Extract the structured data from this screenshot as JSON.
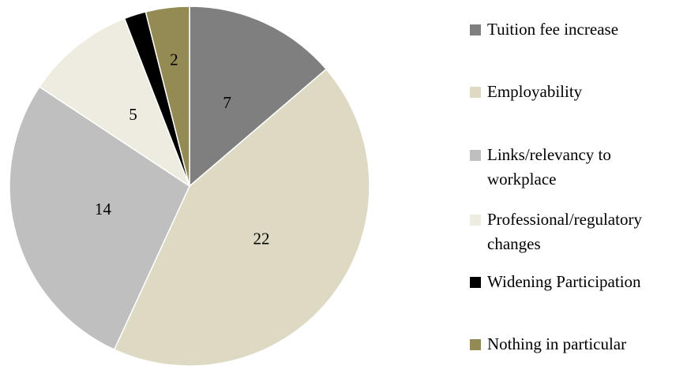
{
  "chart_data": {
    "type": "pie",
    "categories": [
      "Tuition fee increase",
      "Employability",
      "Links/relevancy to workplace",
      "Professional/regulatory changes",
      "Widening Participation",
      "Nothing in particular"
    ],
    "values": [
      7,
      22,
      14,
      5,
      1,
      2
    ],
    "value_labels": [
      "7",
      "22",
      "14",
      "5",
      null,
      "2"
    ],
    "colors": [
      "#7f7f7f",
      "#ddd9c3",
      "#bfbfbf",
      "#eeece1",
      "#000000",
      "#948a54"
    ],
    "legend": "right"
  }
}
